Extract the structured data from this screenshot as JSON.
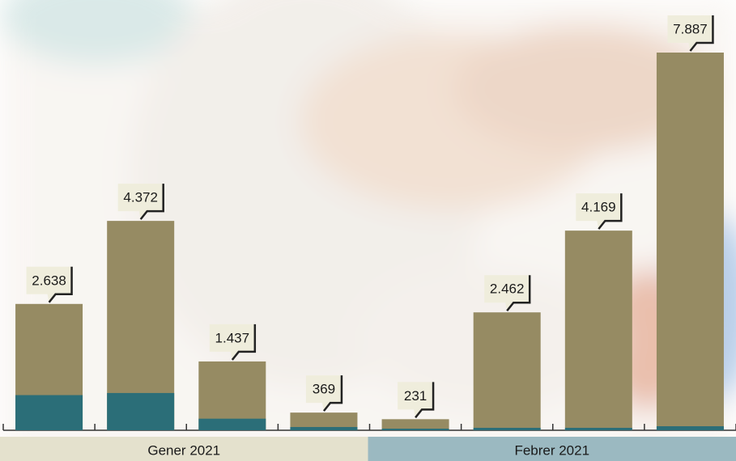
{
  "chart_data": {
    "type": "bar",
    "categories": [
      null,
      null,
      null,
      null,
      null,
      null,
      null,
      null
    ],
    "values": [
      2638,
      4372,
      1437,
      369,
      231,
      2462,
      4169,
      7887
    ],
    "value_labels": [
      "2.638",
      "4.372",
      "1.437",
      "369",
      "231",
      "2.462",
      "4.169",
      "7.887"
    ],
    "color": "#968b63",
    "subset": {
      "color": "#2b6e78",
      "values": [
        734,
        778,
        242,
        68,
        33,
        51,
        51,
        84
      ]
    },
    "groups": [
      {
        "label": "Gener 2021",
        "color": "#e4e1cd"
      },
      {
        "label": "Febrer 2021",
        "color": "#9bb9c1"
      }
    ]
  }
}
